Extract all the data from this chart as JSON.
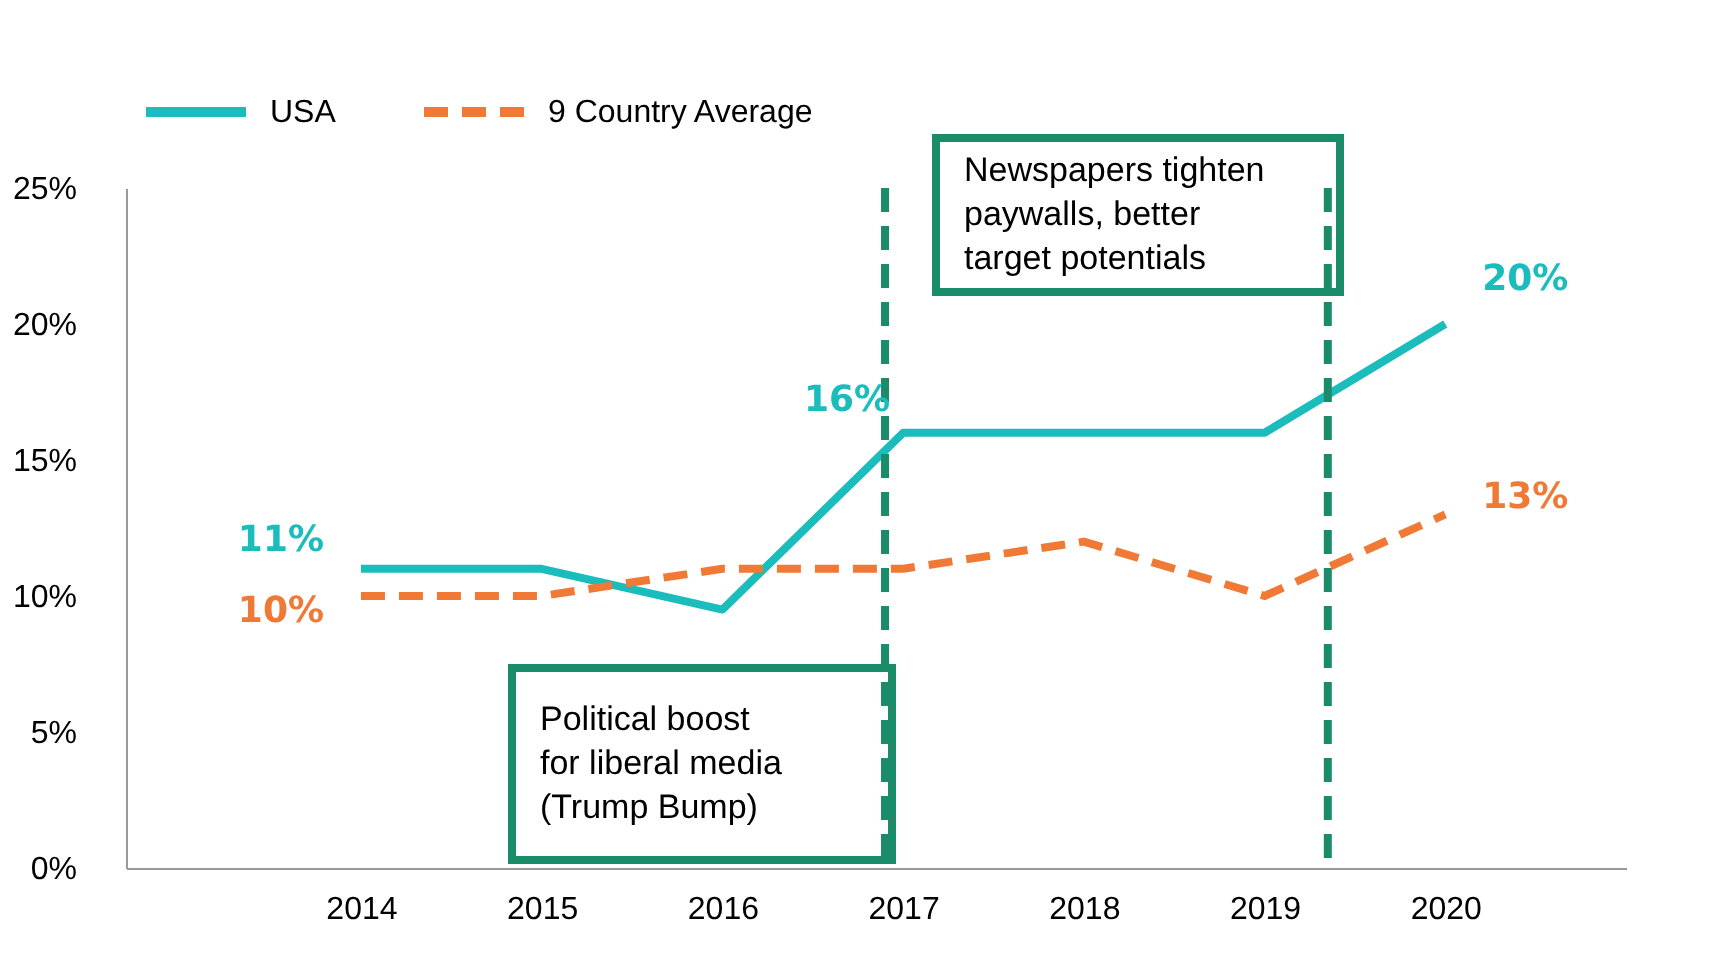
{
  "chart_data": {
    "type": "line",
    "x": [
      2014,
      2015,
      2016,
      2017,
      2018,
      2019,
      2020
    ],
    "xlim": [
      2012.7,
      2021
    ],
    "xticks": [
      2014,
      2015,
      2016,
      2017,
      2018,
      2019,
      2020
    ],
    "ylim": [
      0,
      25
    ],
    "yticks": [
      {
        "value": 0,
        "label": "0%"
      },
      {
        "value": 5,
        "label": "5%"
      },
      {
        "value": 10,
        "label": "10%"
      },
      {
        "value": 15,
        "label": "15%"
      },
      {
        "value": 20,
        "label": "20%"
      },
      {
        "value": 25,
        "label": "25%"
      }
    ],
    "series": [
      {
        "name": "USA",
        "color": "#1bbcbc",
        "line_style": "solid",
        "values": [
          11,
          11,
          9.5,
          16,
          16,
          16,
          20
        ],
        "value_labels": [
          "11%",
          null,
          null,
          "16%",
          null,
          null,
          "20%"
        ]
      },
      {
        "name": "9 Country Average",
        "color": "#f07a35",
        "line_style": "dashed",
        "values": [
          10,
          10,
          11,
          11,
          12,
          10,
          13
        ],
        "value_labels": [
          "10%",
          null,
          null,
          null,
          null,
          null,
          "13%"
        ]
      }
    ],
    "ref_lines": [
      {
        "axis": "x",
        "value": 2016.9,
        "color": "#1a8c6a",
        "line_style": "dashed"
      },
      {
        "axis": "x",
        "value": 2019.35,
        "color": "#1a8c6a",
        "line_style": "dashed"
      }
    ],
    "annotations": [
      "Political boost\nfor liberal media\n(Trump Bump)",
      "Newspapers tighten\npaywalls, better\ntarget potentials"
    ],
    "legend": "top left",
    "grid": false,
    "marker": "none"
  }
}
